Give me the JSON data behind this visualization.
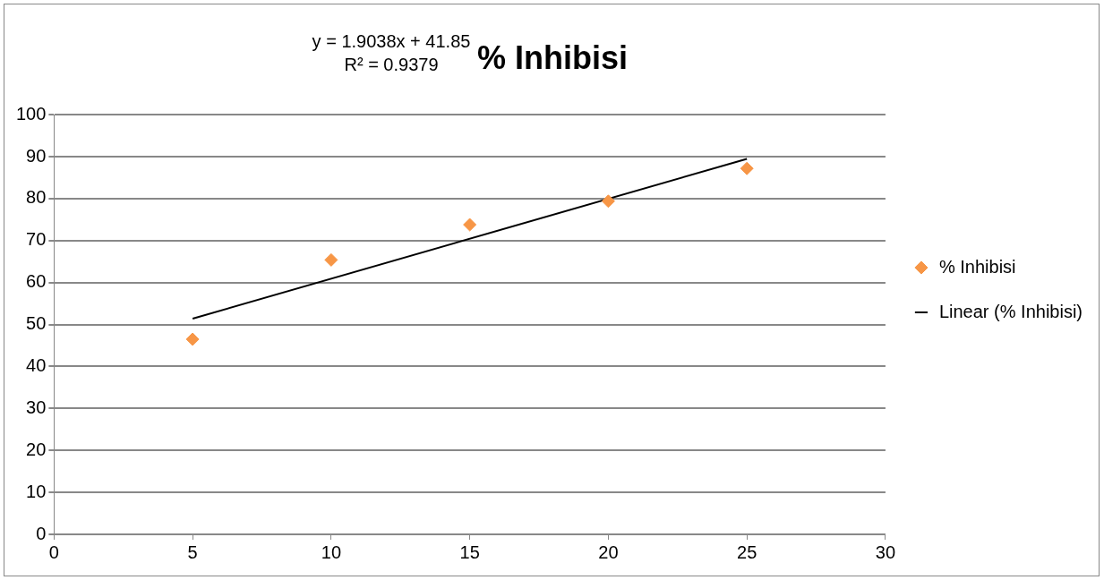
{
  "chart_data": {
    "type": "scatter",
    "title": "% Inhibisi",
    "x": [
      5,
      10,
      15,
      20,
      25
    ],
    "series": [
      {
        "name": "% Inhibisi",
        "color": "#f79646",
        "values": [
          46.5,
          65.4,
          73.8,
          79.4,
          87.2
        ],
        "marker": "diamond"
      },
      {
        "name": "Linear (% Inhibisi)",
        "type": "line",
        "color": "#000000",
        "x": [
          5,
          25
        ],
        "values": [
          51.4,
          89.5
        ],
        "marker": "none",
        "line_style": "solid"
      }
    ],
    "xlim": [
      0,
      30
    ],
    "xticks": [
      0,
      5,
      10,
      15,
      20,
      25,
      30
    ],
    "ylim": [
      0,
      100
    ],
    "yticks": [
      0,
      10,
      20,
      30,
      40,
      50,
      60,
      70,
      80,
      90,
      100
    ],
    "grid": "y",
    "legend": "right",
    "annotations": [
      "y = 1.9038x + 41.85",
      "R² = 0.9379"
    ]
  }
}
